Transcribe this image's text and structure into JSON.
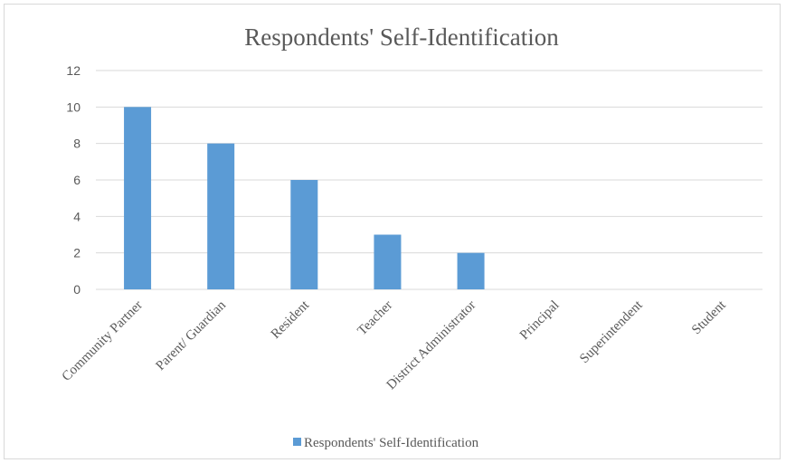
{
  "chart_data": {
    "type": "bar",
    "title": "Respondents' Self-Identification",
    "categories": [
      "Community Partner",
      "Parent/ Guardian",
      "Resident",
      "Teacher",
      "District Administrator",
      "Principal",
      "Superintendent",
      "Student"
    ],
    "series": [
      {
        "name": "Respondents' Self-Identification",
        "values": [
          10,
          8,
          6,
          3,
          2,
          0,
          0,
          0
        ]
      }
    ],
    "ylim": [
      0,
      12
    ],
    "yticks": [
      0,
      2,
      4,
      6,
      8,
      10,
      12
    ],
    "grid": true,
    "legend_position": "bottom",
    "colors": {
      "bar": "#5b9bd5",
      "grid": "#d9d9d9",
      "text": "#595959"
    }
  }
}
